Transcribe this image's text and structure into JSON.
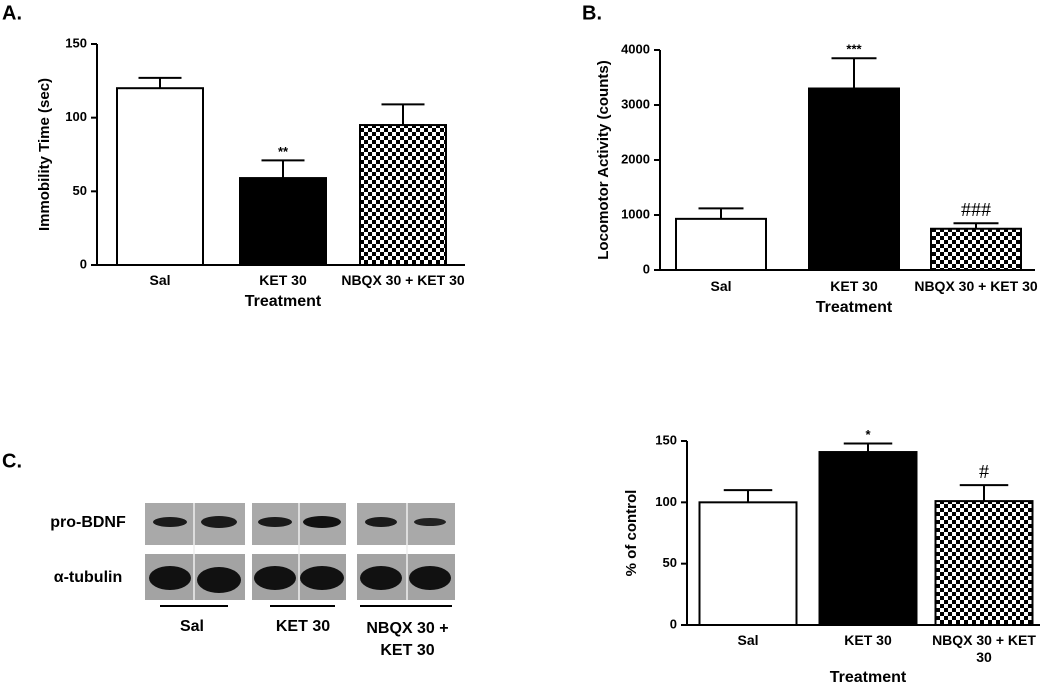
{
  "chart_data": [
    {
      "type": "bar",
      "panel": "A.",
      "ylabel": "Immobility Time (sec)",
      "xlabel": "Treatment",
      "categories": [
        "Sal",
        "KET 30",
        "NBQX 30 + KET 30"
      ],
      "values": [
        120,
        59,
        95
      ],
      "errors": [
        7,
        12,
        14
      ],
      "annotations": [
        null,
        "**",
        null
      ],
      "fills": [
        "#ffffff",
        "#000000",
        "checkerboard"
      ],
      "ylim": [
        0,
        150
      ],
      "yticks": [
        0,
        50,
        100,
        150
      ]
    },
    {
      "type": "bar",
      "panel": "B.",
      "ylabel": "Locomotor Activity (counts)",
      "xlabel": "Treatment",
      "categories": [
        "Sal",
        "KET 30",
        "NBQX 30 + KET 30"
      ],
      "values": [
        930,
        3300,
        750
      ],
      "errors": [
        190,
        550,
        100
      ],
      "annotations": [
        null,
        "***",
        "###"
      ],
      "fills": [
        "#ffffff",
        "#000000",
        "checkerboard"
      ],
      "ylim": [
        0,
        4000
      ],
      "yticks": [
        0,
        1000,
        2000,
        3000,
        4000
      ]
    },
    {
      "type": "bar",
      "ylabel": "% of control",
      "xlabel": "Treatment",
      "categories": [
        "Sal",
        "KET 30",
        "NBQX 30 + KET 30"
      ],
      "values": [
        100,
        141,
        101
      ],
      "errors": [
        10,
        7,
        13
      ],
      "annotations": [
        null,
        "*",
        "#"
      ],
      "fills": [
        "#ffffff",
        "#000000",
        "checkerboard"
      ],
      "ylim": [
        0,
        150
      ],
      "yticks": [
        0,
        50,
        100,
        150
      ]
    }
  ],
  "blot": {
    "panel": "C.",
    "rows": [
      "pro-BDNF",
      "α-tubulin"
    ],
    "groups": [
      "Sal",
      "KET 30",
      "NBQX 30 + KET 30"
    ]
  }
}
